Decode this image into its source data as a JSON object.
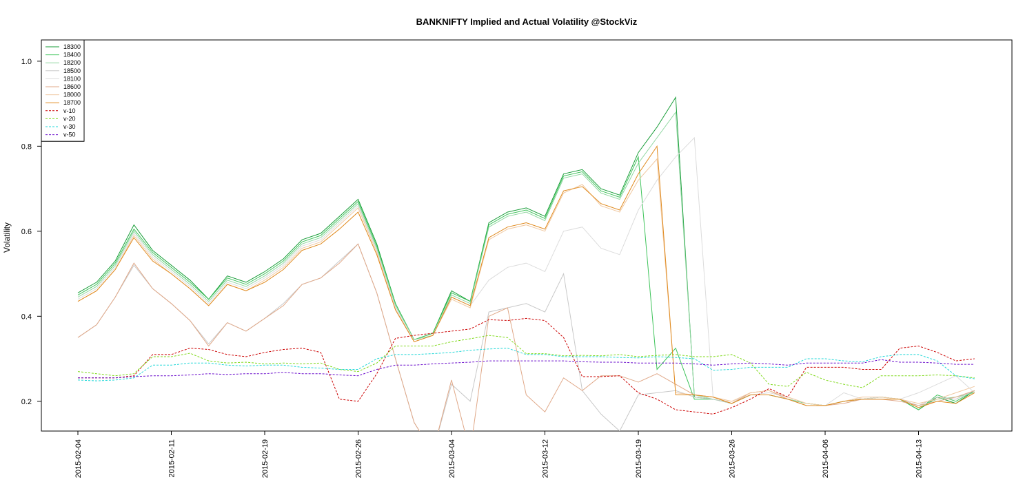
{
  "chart_data": {
    "type": "line",
    "title": "BANKNIFTY Implied and Actual Volatility @StockViz",
    "xlabel": "",
    "ylabel": "Volatility",
    "ylim": [
      0.13,
      1.05
    ],
    "yticks": [
      0.2,
      0.4,
      0.6,
      0.8,
      1.0
    ],
    "ytick_labels": [
      "0.2",
      "0.4",
      "0.6",
      "0.8",
      "1.0"
    ],
    "xtick_labels": [
      "2015-02-04",
      "2015-02-11",
      "2015-02-19",
      "2015-02-26",
      "2015-03-04",
      "2015-03-12",
      "2015-03-19",
      "2015-03-26",
      "2015-04-06",
      "2015-04-13"
    ],
    "xtick_positions": [
      0,
      5,
      10,
      15,
      20,
      25,
      30,
      35,
      40,
      45
    ],
    "x_count": 49,
    "grid": false,
    "legend_position": "top-left",
    "series": [
      {
        "name": "18300",
        "color": "#1a9e3a",
        "dash": "solid",
        "values": [
          0.455,
          0.48,
          0.53,
          0.615,
          0.555,
          0.52,
          0.485,
          0.44,
          0.495,
          0.48,
          0.505,
          0.535,
          0.58,
          0.595,
          0.635,
          0.675,
          0.57,
          0.43,
          0.345,
          0.36,
          0.46,
          0.435,
          0.62,
          0.645,
          0.655,
          0.635,
          0.735,
          0.745,
          0.7,
          0.685,
          0.785,
          0.845,
          0.915,
          0.21,
          0.205,
          0.195,
          0.215,
          0.215,
          0.205,
          0.195,
          0.19,
          0.2,
          0.205,
          0.21,
          0.205,
          0.18,
          0.21,
          0.195,
          0.225
        ]
      },
      {
        "name": "18400",
        "color": "#3fc45b",
        "dash": "solid",
        "values": [
          0.45,
          0.475,
          0.525,
          0.605,
          0.55,
          0.515,
          0.48,
          0.44,
          0.49,
          0.475,
          0.5,
          0.53,
          0.575,
          0.59,
          0.63,
          0.67,
          0.565,
          0.43,
          0.345,
          0.36,
          0.455,
          0.435,
          0.615,
          0.64,
          0.65,
          0.63,
          0.73,
          0.74,
          0.695,
          0.68,
          0.775,
          0.275,
          0.325,
          0.205,
          0.205,
          0.195,
          0.215,
          0.215,
          0.205,
          0.195,
          0.19,
          0.2,
          0.205,
          0.21,
          0.205,
          0.18,
          0.215,
          0.2,
          0.225
        ]
      },
      {
        "name": "18200",
        "color": "#8fd6a0",
        "dash": "solid",
        "values": [
          0.445,
          0.47,
          0.52,
          0.6,
          0.545,
          0.51,
          0.475,
          0.435,
          0.485,
          0.47,
          0.495,
          0.525,
          0.57,
          0.585,
          0.625,
          0.665,
          0.56,
          0.425,
          0.345,
          0.355,
          0.45,
          0.43,
          0.61,
          0.635,
          0.645,
          0.625,
          0.725,
          0.735,
          0.69,
          0.675,
          0.76,
          0.82,
          0.88,
          0.215,
          0.205,
          0.195,
          0.215,
          0.215,
          0.205,
          0.195,
          0.19,
          0.2,
          0.205,
          0.21,
          0.205,
          0.185,
          0.205,
          0.21,
          0.22
        ]
      },
      {
        "name": "18500",
        "color": "#c8c8c8",
        "dash": "solid",
        "values": [
          0.35,
          0.38,
          0.445,
          0.52,
          0.465,
          0.43,
          0.39,
          0.335,
          0.385,
          0.365,
          0.395,
          0.43,
          0.475,
          0.49,
          0.53,
          0.57,
          0.455,
          0.3,
          0.15,
          0.08,
          0.24,
          0.2,
          0.41,
          0.42,
          0.43,
          0.41,
          0.5,
          0.225,
          0.17,
          0.13,
          0.215,
          0.22,
          0.225,
          0.21,
          0.205,
          0.195,
          0.215,
          0.215,
          0.205,
          0.19,
          0.19,
          0.2,
          0.205,
          0.21,
          0.205,
          0.19,
          0.21,
          0.205,
          0.225
        ]
      },
      {
        "name": "18100",
        "color": "#dcdcdc",
        "dash": "solid",
        "values": [
          0.44,
          0.465,
          0.515,
          0.595,
          0.54,
          0.505,
          0.47,
          0.43,
          0.48,
          0.465,
          0.49,
          0.52,
          0.565,
          0.58,
          0.62,
          0.66,
          0.555,
          0.42,
          0.34,
          0.355,
          0.445,
          0.425,
          0.485,
          0.515,
          0.525,
          0.505,
          0.6,
          0.61,
          0.56,
          0.545,
          0.65,
          0.72,
          0.775,
          0.82,
          0.21,
          0.2,
          0.215,
          0.22,
          0.21,
          0.195,
          0.19,
          0.22,
          0.205,
          0.21,
          0.205,
          0.22,
          0.24,
          0.26,
          0.22
        ]
      },
      {
        "name": "18600",
        "color": "#e0a888",
        "dash": "solid",
        "values": [
          0.35,
          0.38,
          0.445,
          0.525,
          0.465,
          0.43,
          0.39,
          0.33,
          0.385,
          0.365,
          0.395,
          0.425,
          0.475,
          0.49,
          0.525,
          0.57,
          0.455,
          0.3,
          0.15,
          0.08,
          0.25,
          0.08,
          0.4,
          0.42,
          0.215,
          0.175,
          0.255,
          0.225,
          0.26,
          0.26,
          0.245,
          0.265,
          0.24,
          0.215,
          0.21,
          0.195,
          0.22,
          0.225,
          0.205,
          0.19,
          0.19,
          0.195,
          0.205,
          0.205,
          0.2,
          0.19,
          0.2,
          0.21,
          0.225
        ]
      },
      {
        "name": "18000",
        "color": "#f0c8a0",
        "dash": "solid",
        "values": [
          0.435,
          0.46,
          0.51,
          0.59,
          0.535,
          0.5,
          0.465,
          0.425,
          0.475,
          0.46,
          0.485,
          0.515,
          0.56,
          0.575,
          0.615,
          0.655,
          0.55,
          0.415,
          0.34,
          0.355,
          0.44,
          0.42,
          0.58,
          0.605,
          0.615,
          0.6,
          0.69,
          0.71,
          0.66,
          0.645,
          0.72,
          0.77,
          0.22,
          0.215,
          0.21,
          0.2,
          0.22,
          0.225,
          0.21,
          0.195,
          0.19,
          0.2,
          0.21,
          0.21,
          0.205,
          0.195,
          0.205,
          0.22,
          0.235
        ]
      },
      {
        "name": "18700",
        "color": "#e08a1e",
        "dash": "solid",
        "values": [
          0.435,
          0.46,
          0.51,
          0.585,
          0.53,
          0.5,
          0.465,
          0.425,
          0.475,
          0.46,
          0.48,
          0.51,
          0.555,
          0.57,
          0.605,
          0.645,
          0.545,
          0.415,
          0.34,
          0.355,
          0.445,
          0.425,
          0.585,
          0.61,
          0.62,
          0.605,
          0.695,
          0.705,
          0.665,
          0.65,
          0.735,
          0.8,
          0.215,
          0.215,
          0.21,
          0.195,
          0.215,
          0.215,
          0.205,
          0.19,
          0.19,
          0.2,
          0.205,
          0.205,
          0.205,
          0.185,
          0.2,
          0.195,
          0.22
        ]
      },
      {
        "name": "v-10",
        "color": "#cc0000",
        "dash": "dashed",
        "values": [
          0.255,
          0.255,
          0.255,
          0.26,
          0.31,
          0.31,
          0.325,
          0.322,
          0.31,
          0.305,
          0.315,
          0.322,
          0.325,
          0.315,
          0.205,
          0.2,
          0.265,
          0.348,
          0.355,
          0.36,
          0.365,
          0.37,
          0.392,
          0.39,
          0.395,
          0.39,
          0.35,
          0.258,
          0.258,
          0.26,
          0.22,
          0.205,
          0.18,
          0.175,
          0.17,
          0.185,
          0.205,
          0.23,
          0.21,
          0.28,
          0.28,
          0.28,
          0.275,
          0.275,
          0.325,
          0.33,
          0.315,
          0.295,
          0.3
        ]
      },
      {
        "name": "v-20",
        "color": "#7fd91a",
        "dash": "dashed",
        "values": [
          0.27,
          0.265,
          0.26,
          0.265,
          0.305,
          0.305,
          0.313,
          0.295,
          0.29,
          0.292,
          0.288,
          0.29,
          0.288,
          0.29,
          0.275,
          0.27,
          0.29,
          0.33,
          0.33,
          0.33,
          0.34,
          0.347,
          0.355,
          0.35,
          0.312,
          0.312,
          0.307,
          0.308,
          0.307,
          0.31,
          0.305,
          0.308,
          0.31,
          0.305,
          0.305,
          0.31,
          0.29,
          0.24,
          0.235,
          0.268,
          0.25,
          0.24,
          0.232,
          0.26,
          0.26,
          0.26,
          0.262,
          0.26,
          0.255
        ]
      },
      {
        "name": "v-30",
        "color": "#22d8d8",
        "dash": "dashed",
        "values": [
          0.25,
          0.248,
          0.25,
          0.255,
          0.285,
          0.285,
          0.29,
          0.29,
          0.285,
          0.283,
          0.285,
          0.285,
          0.28,
          0.278,
          0.275,
          0.275,
          0.3,
          0.31,
          0.31,
          0.312,
          0.315,
          0.32,
          0.323,
          0.325,
          0.31,
          0.31,
          0.305,
          0.305,
          0.305,
          0.303,
          0.302,
          0.305,
          0.303,
          0.3,
          0.273,
          0.275,
          0.28,
          0.28,
          0.28,
          0.3,
          0.3,
          0.295,
          0.293,
          0.305,
          0.31,
          0.31,
          0.295,
          0.26,
          0.253
        ]
      },
      {
        "name": "v-50",
        "color": "#6a0dcc",
        "dash": "dashed",
        "values": [
          0.255,
          0.255,
          0.255,
          0.258,
          0.26,
          0.26,
          0.262,
          0.265,
          0.263,
          0.265,
          0.265,
          0.268,
          0.265,
          0.265,
          0.262,
          0.26,
          0.275,
          0.285,
          0.285,
          0.288,
          0.29,
          0.292,
          0.295,
          0.295,
          0.295,
          0.295,
          0.295,
          0.293,
          0.292,
          0.292,
          0.29,
          0.29,
          0.29,
          0.288,
          0.285,
          0.288,
          0.29,
          0.288,
          0.285,
          0.29,
          0.29,
          0.29,
          0.29,
          0.298,
          0.292,
          0.292,
          0.29,
          0.287,
          0.287
        ]
      }
    ]
  }
}
